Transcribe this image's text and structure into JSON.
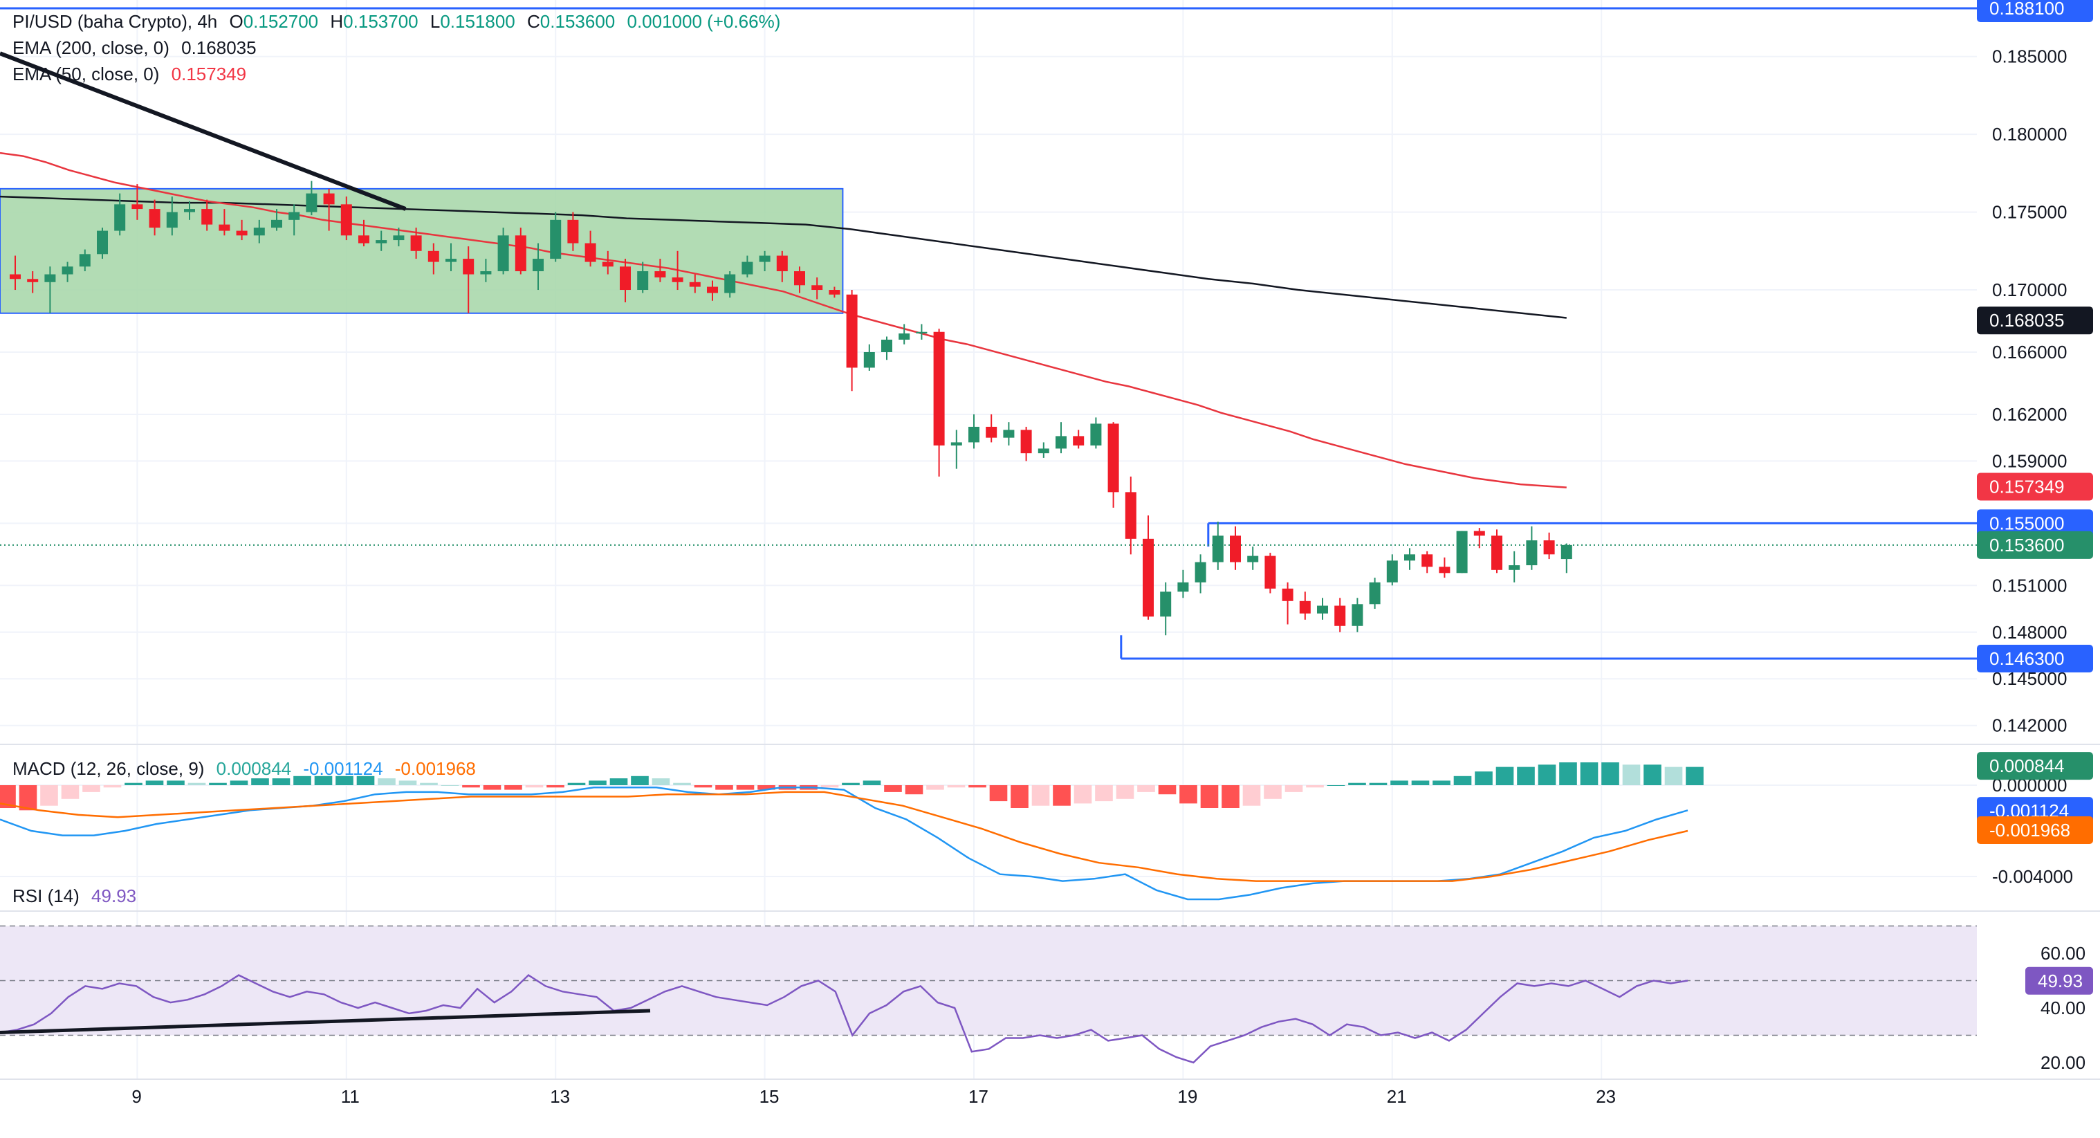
{
  "header": {
    "symbol": "PI/USD (baha Crypto), 4h",
    "open_label": "O",
    "open": "0.152700",
    "high_label": "H",
    "high": "0.153700",
    "low_label": "L",
    "low": "0.151800",
    "close_label": "C",
    "close": "0.153600",
    "change": "0.001000 (+0.66%)",
    "ema200_label": "EMA (200, close, 0)",
    "ema200_value": "0.168035",
    "ema50_label": "EMA (50, close, 0)",
    "ema50_value": "0.157349",
    "macd_label": "MACD (12, 26, close, 9)",
    "macd_hist": "0.000844",
    "macd_line": "-0.001124",
    "macd_signal": "-0.001968",
    "rsi_label": "RSI (14)",
    "rsi_value": "49.93"
  },
  "colors": {
    "up": "#26906a",
    "down": "#f01c28",
    "ema50": "#e8353e",
    "ema200": "#131722",
    "blue_line": "#2962ff",
    "macd": "#2196f3",
    "signal": "#ff6d00",
    "rsi": "#7e57c2",
    "zone_fill": "#a5d6a7",
    "rsi_band": "#ede7f6"
  },
  "chart_data": [
    {
      "type": "candlestick",
      "title": "PI/USD (baha Crypto), 4h",
      "x_ticks": [
        "9",
        "11",
        "13",
        "15",
        "17",
        "19",
        "21",
        "23"
      ],
      "y_ticks": [
        "0.185000",
        "0.180000",
        "0.175000",
        "0.170000",
        "0.166000",
        "0.162000",
        "0.159000",
        "0.155000",
        "0.151000",
        "0.148000",
        "0.145000",
        "0.142000"
      ],
      "y_labels_highlight": [
        {
          "text": "0.188100",
          "value": 0.1881,
          "style": "blue"
        },
        {
          "text": "0.168035",
          "value": 0.168035,
          "style": "black"
        },
        {
          "text": "0.157349",
          "value": 0.157349,
          "style": "red"
        },
        {
          "text": "0.155000",
          "value": 0.155,
          "style": "blue"
        },
        {
          "text": "0.153600",
          "value": 0.1536,
          "style": "green"
        },
        {
          "text": "0.146300",
          "value": 0.1463,
          "style": "blue"
        }
      ],
      "horizontal_levels": [
        0.1881,
        0.155,
        0.1463
      ],
      "last_price": 0.1536,
      "candles": [
        [
          0.171,
          0.1722,
          0.17,
          0.1707
        ],
        [
          0.1707,
          0.1712,
          0.1698,
          0.1705
        ],
        [
          0.1705,
          0.1715,
          0.1685,
          0.171
        ],
        [
          0.171,
          0.1718,
          0.1705,
          0.1715
        ],
        [
          0.1715,
          0.1726,
          0.1712,
          0.1723
        ],
        [
          0.1723,
          0.174,
          0.172,
          0.1738
        ],
        [
          0.1738,
          0.1762,
          0.1735,
          0.1755
        ],
        [
          0.1755,
          0.1768,
          0.1745,
          0.1752
        ],
        [
          0.1752,
          0.1758,
          0.1735,
          0.174
        ],
        [
          0.174,
          0.176,
          0.1735,
          0.175
        ],
        [
          0.175,
          0.1757,
          0.1745,
          0.1752
        ],
        [
          0.1752,
          0.1758,
          0.1738,
          0.1742
        ],
        [
          0.1742,
          0.1752,
          0.1735,
          0.1738
        ],
        [
          0.1738,
          0.1745,
          0.1732,
          0.1735
        ],
        [
          0.1735,
          0.1745,
          0.173,
          0.174
        ],
        [
          0.174,
          0.1752,
          0.1738,
          0.1745
        ],
        [
          0.1745,
          0.1755,
          0.1735,
          0.175
        ],
        [
          0.175,
          0.177,
          0.1748,
          0.1762
        ],
        [
          0.1762,
          0.1765,
          0.1738,
          0.1755
        ],
        [
          0.1755,
          0.176,
          0.1732,
          0.1735
        ],
        [
          0.1735,
          0.1745,
          0.1728,
          0.173
        ],
        [
          0.173,
          0.1738,
          0.1725,
          0.1732
        ],
        [
          0.1732,
          0.174,
          0.1728,
          0.1735
        ],
        [
          0.1735,
          0.174,
          0.172,
          0.1725
        ],
        [
          0.1725,
          0.173,
          0.171,
          0.1718
        ],
        [
          0.1718,
          0.173,
          0.1712,
          0.172
        ],
        [
          0.172,
          0.1728,
          0.1685,
          0.171
        ],
        [
          0.171,
          0.172,
          0.1705,
          0.1712
        ],
        [
          0.1712,
          0.174,
          0.171,
          0.1735
        ],
        [
          0.1735,
          0.174,
          0.171,
          0.1712
        ],
        [
          0.1712,
          0.173,
          0.17,
          0.172
        ],
        [
          0.172,
          0.175,
          0.1718,
          0.1745
        ],
        [
          0.1745,
          0.175,
          0.1725,
          0.173
        ],
        [
          0.173,
          0.1738,
          0.1715,
          0.1718
        ],
        [
          0.1718,
          0.1725,
          0.171,
          0.1715
        ],
        [
          0.1715,
          0.172,
          0.1692,
          0.17
        ],
        [
          0.17,
          0.1718,
          0.1698,
          0.1712
        ],
        [
          0.1712,
          0.172,
          0.1705,
          0.1708
        ],
        [
          0.1708,
          0.1725,
          0.17,
          0.1705
        ],
        [
          0.1705,
          0.171,
          0.1698,
          0.1702
        ],
        [
          0.1702,
          0.1706,
          0.1693,
          0.1698
        ],
        [
          0.1698,
          0.1712,
          0.1695,
          0.171
        ],
        [
          0.171,
          0.1722,
          0.1708,
          0.1718
        ],
        [
          0.1718,
          0.1725,
          0.1712,
          0.1722
        ],
        [
          0.1722,
          0.1725,
          0.1705,
          0.1712
        ],
        [
          0.1712,
          0.1715,
          0.1698,
          0.1703
        ],
        [
          0.1703,
          0.1708,
          0.1694,
          0.17
        ],
        [
          0.17,
          0.1702,
          0.1695,
          0.1697
        ],
        [
          0.1697,
          0.17,
          0.1635,
          0.165
        ],
        [
          0.165,
          0.1665,
          0.1648,
          0.166
        ],
        [
          0.166,
          0.167,
          0.1655,
          0.1668
        ],
        [
          0.1668,
          0.1678,
          0.1665,
          0.1672
        ],
        [
          0.1672,
          0.1678,
          0.1668,
          0.1673
        ],
        [
          0.1673,
          0.1675,
          0.158,
          0.16
        ],
        [
          0.16,
          0.161,
          0.1585,
          0.1602
        ],
        [
          0.1602,
          0.162,
          0.1598,
          0.1612
        ],
        [
          0.1612,
          0.162,
          0.1602,
          0.1605
        ],
        [
          0.1605,
          0.1615,
          0.16,
          0.161
        ],
        [
          0.161,
          0.1612,
          0.159,
          0.1595
        ],
        [
          0.1595,
          0.1602,
          0.1592,
          0.1598
        ],
        [
          0.1598,
          0.1615,
          0.1595,
          0.1606
        ],
        [
          0.1606,
          0.161,
          0.1598,
          0.16
        ],
        [
          0.16,
          0.1618,
          0.1598,
          0.1614
        ],
        [
          0.1614,
          0.1615,
          0.156,
          0.157
        ],
        [
          0.157,
          0.158,
          0.153,
          0.154
        ],
        [
          0.154,
          0.1555,
          0.1488,
          0.149
        ],
        [
          0.149,
          0.1512,
          0.1478,
          0.1506
        ],
        [
          0.1506,
          0.152,
          0.1502,
          0.1512
        ],
        [
          0.1512,
          0.153,
          0.1505,
          0.1525
        ],
        [
          0.1525,
          0.1551,
          0.152,
          0.1542
        ],
        [
          0.1542,
          0.1548,
          0.152,
          0.1525
        ],
        [
          0.1525,
          0.1535,
          0.152,
          0.1529
        ],
        [
          0.1529,
          0.1531,
          0.1505,
          0.1508
        ],
        [
          0.1508,
          0.1512,
          0.1485,
          0.15
        ],
        [
          0.15,
          0.1506,
          0.1488,
          0.1492
        ],
        [
          0.1492,
          0.1502,
          0.1488,
          0.1497
        ],
        [
          0.1497,
          0.1502,
          0.148,
          0.1484
        ],
        [
          0.1484,
          0.1502,
          0.148,
          0.1498
        ],
        [
          0.1498,
          0.1515,
          0.1495,
          0.1512
        ],
        [
          0.1512,
          0.153,
          0.151,
          0.1526
        ],
        [
          0.1526,
          0.1534,
          0.152,
          0.153
        ],
        [
          0.153,
          0.1532,
          0.1518,
          0.1522
        ],
        [
          0.1522,
          0.1528,
          0.1515,
          0.1518
        ],
        [
          0.1518,
          0.1545,
          0.1518,
          0.1545
        ],
        [
          0.1545,
          0.1547,
          0.1534,
          0.1542
        ],
        [
          0.1542,
          0.1546,
          0.1518,
          0.152
        ],
        [
          0.152,
          0.1532,
          0.1512,
          0.1523
        ],
        [
          0.1523,
          0.1548,
          0.152,
          0.1539
        ],
        [
          0.1539,
          0.1544,
          0.1527,
          0.153
        ],
        [
          0.1527,
          0.1537,
          0.1518,
          0.1536
        ]
      ],
      "ema50": [
        0.1788,
        0.1786,
        0.1782,
        0.1777,
        0.1773,
        0.1769,
        0.1766,
        0.1763,
        0.176,
        0.1757,
        0.1755,
        0.1753,
        0.175,
        0.1748,
        0.1745,
        0.1743,
        0.1741,
        0.1739,
        0.1737,
        0.1735,
        0.1733,
        0.1731,
        0.1729,
        0.1727,
        0.1724,
        0.1722,
        0.172,
        0.1718,
        0.1716,
        0.1714,
        0.1711,
        0.1708,
        0.1705,
        0.1702,
        0.1699,
        0.1694,
        0.1689,
        0.1684,
        0.168,
        0.1676,
        0.1672,
        0.1668,
        0.1665,
        0.1661,
        0.1657,
        0.1653,
        0.1649,
        0.1645,
        0.1641,
        0.1638,
        0.1634,
        0.163,
        0.1626,
        0.1621,
        0.1617,
        0.1613,
        0.1609,
        0.1604,
        0.16,
        0.1596,
        0.1592,
        0.1588,
        0.1585,
        0.1582,
        0.1579,
        0.1577,
        0.1575,
        0.1574,
        0.1573
      ],
      "ema200": [
        0.176,
        0.1759,
        0.1758,
        0.1757,
        0.1756,
        0.1756,
        0.1755,
        0.1754,
        0.1753,
        0.1752,
        0.1751,
        0.175,
        0.1749,
        0.1748,
        0.1746,
        0.1745,
        0.1744,
        0.1743,
        0.1742,
        0.1739,
        0.1735,
        0.1731,
        0.1727,
        0.1723,
        0.1719,
        0.1715,
        0.1711,
        0.1707,
        0.1704,
        0.17,
        0.1697,
        0.1694,
        0.1691,
        0.1688,
        0.1685,
        0.1682
      ],
      "trendline": [
        [
          0.1852
        ],
        [
          0.1752
        ]
      ],
      "zone": {
        "from_index": 0,
        "to_index": 47,
        "top": 0.1765,
        "bottom": 0.1685
      }
    },
    {
      "type": "bar",
      "title": "MACD (12, 26, close, 9)",
      "y_ticks": [
        "0.000000",
        "-0.004000"
      ],
      "y_labels_highlight": [
        {
          "text": "0.000844",
          "value": 0.000844,
          "style": "green"
        },
        {
          "text": "-0.001124",
          "value": -0.001124,
          "style": "blue"
        },
        {
          "text": "-0.001968",
          "value": -0.001968,
          "style": "orange"
        }
      ],
      "histogram": [
        -0.001,
        -0.0011,
        -0.0009,
        -0.0006,
        -0.0003,
        -0.0001,
        0.0001,
        0.0002,
        0.0002,
        0.0001,
        0.0001,
        0.0002,
        0.0003,
        0.0003,
        0.0004,
        0.0004,
        0.0004,
        0.0004,
        0.0003,
        0.0002,
        0.0001,
        0.0,
        -0.0001,
        -0.0002,
        -0.0002,
        -0.0001,
        -0.0001,
        0.0001,
        0.0002,
        0.0003,
        0.0004,
        0.0003,
        0.0001,
        -0.0001,
        -0.0002,
        -0.0002,
        -0.0002,
        -0.0002,
        -0.0002,
        -0.0001,
        0.0001,
        0.0002,
        -0.0003,
        -0.0004,
        -0.0002,
        -0.0001,
        -0.0001,
        -0.0007,
        -0.001,
        -0.0009,
        -0.0009,
        -0.0008,
        -0.0007,
        -0.0006,
        -0.0003,
        -0.0004,
        -0.0008,
        -0.001,
        -0.001,
        -0.0009,
        -0.0006,
        -0.0003,
        -0.0001,
        0.0,
        0.0001,
        0.0001,
        0.0002,
        0.0002,
        0.0002,
        0.0004,
        0.0006,
        0.0008,
        0.0008,
        0.0009,
        0.001,
        0.001,
        0.001,
        0.0009,
        0.0009,
        0.0008,
        0.0008
      ],
      "macd_line": [
        -0.0015,
        -0.002,
        -0.0022,
        -0.0022,
        -0.002,
        -0.0017,
        -0.0015,
        -0.0013,
        -0.0011,
        -0.001,
        -0.0009,
        -0.0007,
        -0.0004,
        -0.0003,
        -0.0003,
        -0.0004,
        -0.0004,
        -0.0004,
        -0.0003,
        -0.0001,
        -0.0001,
        -0.0001,
        -0.0003,
        -0.0004,
        -0.0003,
        -0.0001,
        -0.0001,
        -0.0002,
        -0.001,
        -0.0015,
        -0.0023,
        -0.0032,
        -0.0039,
        -0.004,
        -0.0042,
        -0.0041,
        -0.0039,
        -0.0046,
        -0.005,
        -0.005,
        -0.0048,
        -0.0045,
        -0.0043,
        -0.0042,
        -0.0042,
        -0.0042,
        -0.0042,
        -0.0041,
        -0.0039,
        -0.0034,
        -0.0029,
        -0.0023,
        -0.002,
        -0.0015,
        -0.0011
      ],
      "signal_line": [
        -0.0008,
        -0.0011,
        -0.0013,
        -0.0014,
        -0.0013,
        -0.0012,
        -0.0011,
        -0.001,
        -0.0009,
        -0.0008,
        -0.0007,
        -0.0006,
        -0.0005,
        -0.0005,
        -0.0005,
        -0.0005,
        -0.0005,
        -0.0004,
        -0.0004,
        -0.0004,
        -0.0003,
        -0.0003,
        -0.0006,
        -0.0009,
        -0.0014,
        -0.0019,
        -0.0025,
        -0.003,
        -0.0034,
        -0.0036,
        -0.0039,
        -0.0041,
        -0.0042,
        -0.0042,
        -0.0042,
        -0.0042,
        -0.0042,
        -0.0042,
        -0.004,
        -0.0037,
        -0.0033,
        -0.0029,
        -0.0024,
        -0.002
      ]
    },
    {
      "type": "line",
      "title": "RSI (14)",
      "y_ticks": [
        "60.00",
        "40.00",
        "20.00"
      ],
      "ylim": [
        10,
        75
      ],
      "bands": [
        70,
        50,
        30
      ],
      "y_labels_highlight": [
        {
          "text": "49.93",
          "value": 49.93,
          "style": "purple"
        }
      ],
      "values": [
        31,
        32,
        34,
        38,
        44,
        48,
        47,
        49,
        48,
        44,
        42,
        43,
        45,
        48,
        52,
        49,
        46,
        44,
        46,
        45,
        42,
        40,
        42,
        40,
        38,
        39,
        41,
        40,
        47,
        42,
        46,
        52,
        48,
        46,
        45,
        44,
        39,
        40,
        43,
        46,
        48,
        46,
        44,
        43,
        42,
        41,
        44,
        48,
        50,
        46,
        30,
        38,
        41,
        46,
        48,
        42,
        40,
        24,
        25,
        29,
        29,
        30,
        29,
        30,
        32,
        28,
        29,
        30,
        25,
        22,
        20,
        26,
        28,
        30,
        33,
        35,
        36,
        34,
        30,
        34,
        33,
        30,
        31,
        29,
        31,
        28,
        32,
        38,
        44,
        49,
        48,
        49,
        48,
        50,
        47,
        44,
        48,
        50,
        49,
        50
      ],
      "trendline": [
        [
          31.0
        ],
        [
          39.0
        ]
      ]
    }
  ]
}
